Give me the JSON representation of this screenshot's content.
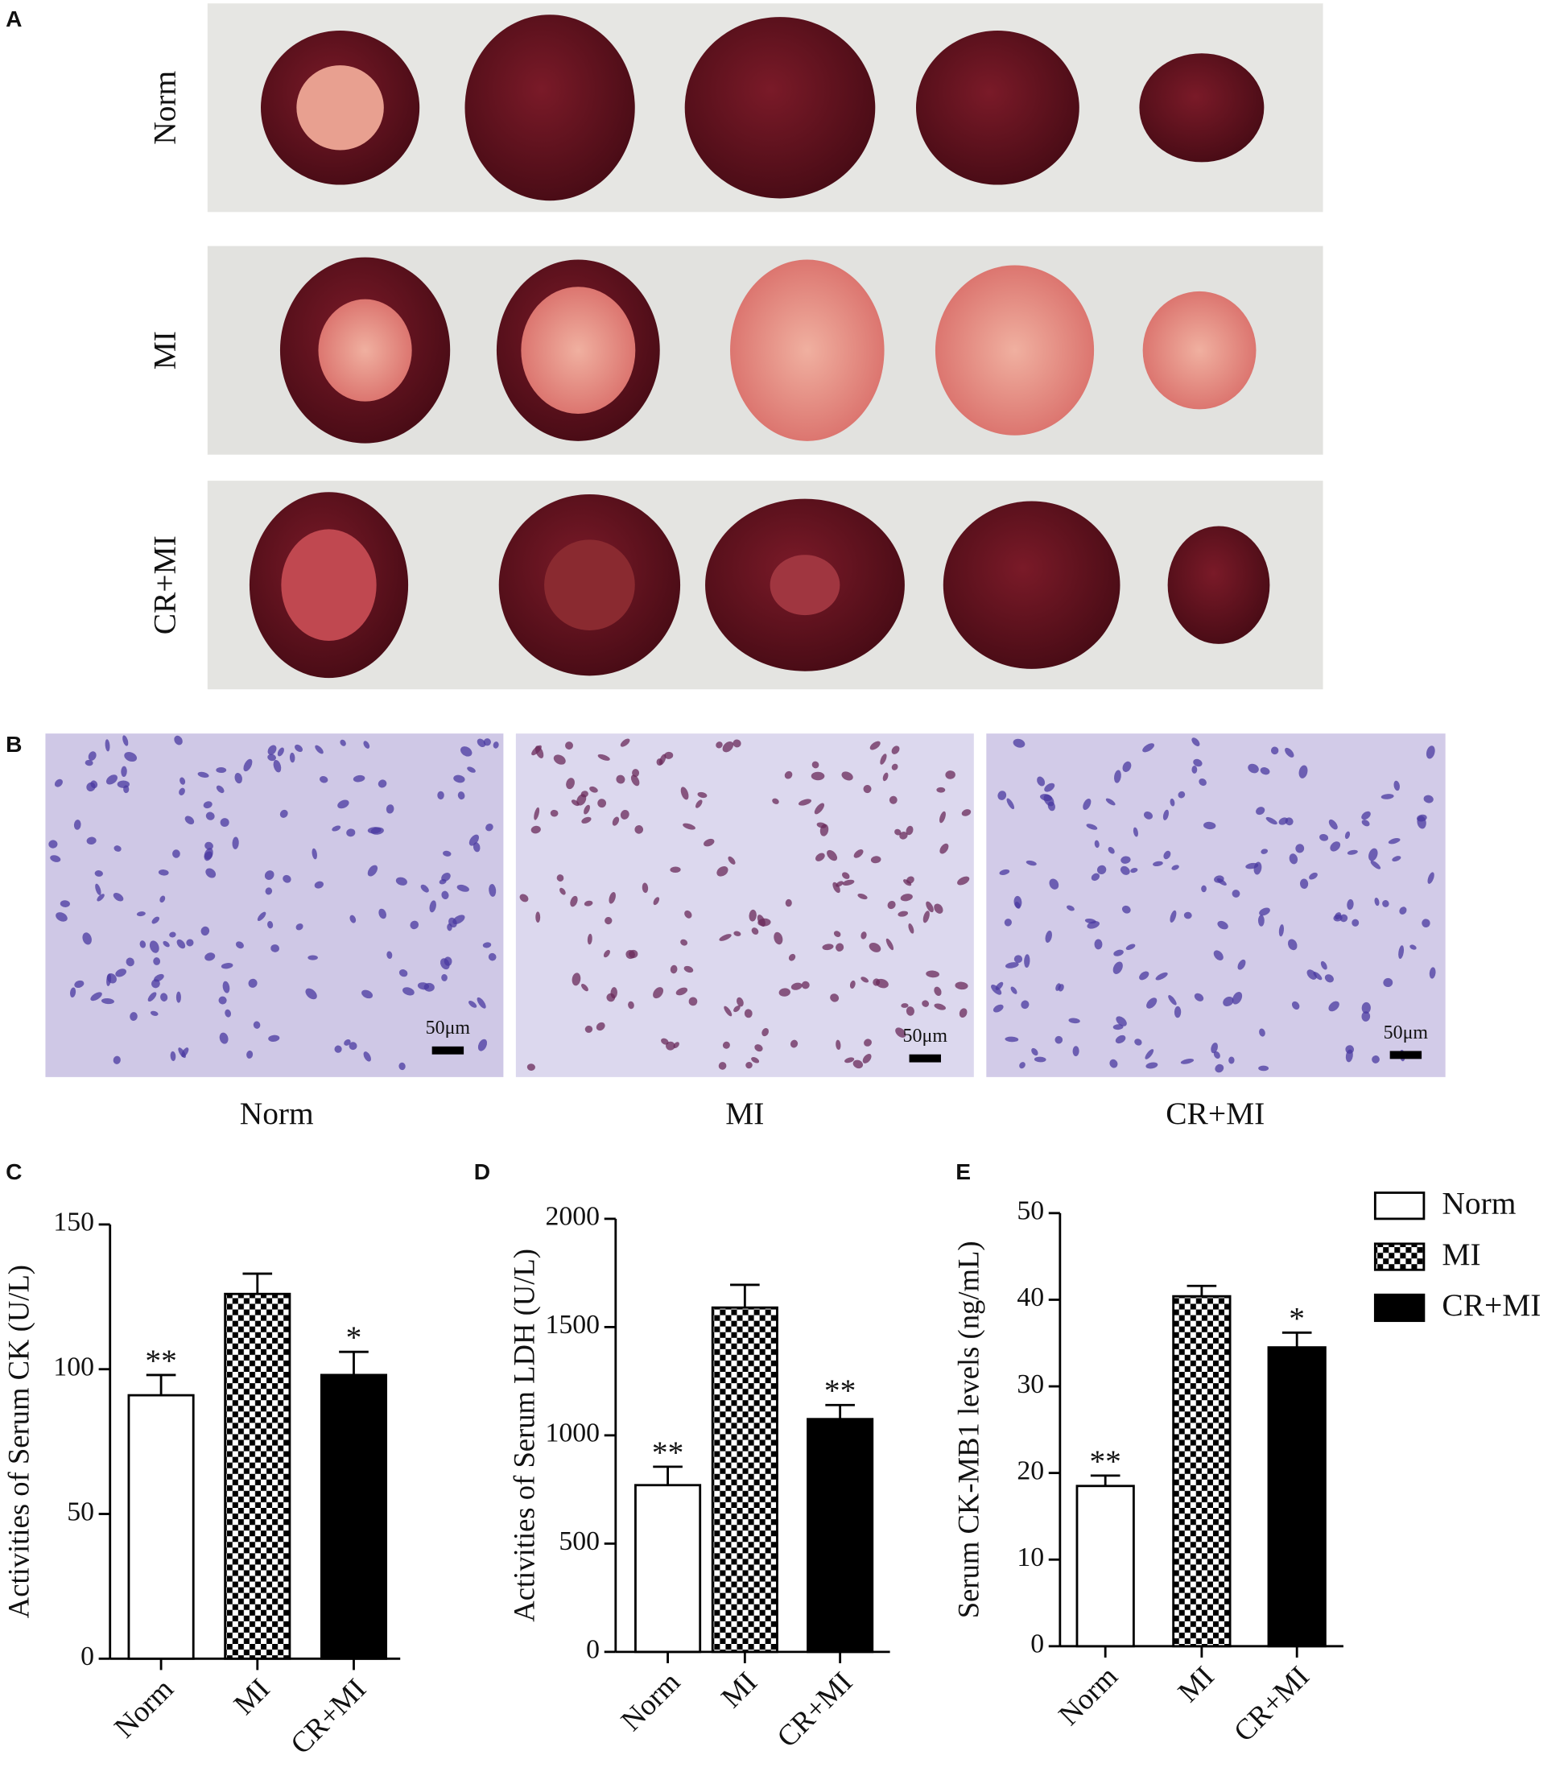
{
  "panel_labels": [
    "A",
    "B",
    "C",
    "D",
    "E"
  ],
  "panel_a": {
    "rows": [
      "Norm",
      "MI",
      "CR+MI"
    ]
  },
  "panel_b": {
    "captions": [
      "Norm",
      "MI",
      "CR+MI"
    ],
    "scale_bars": [
      "50μm",
      "50μm",
      "50μm"
    ]
  },
  "chart_data": [
    {
      "type": "bar",
      "y_label": "Activities of Serum CK (U/L)",
      "categories": [
        "Norm",
        "MI",
        "CR+MI"
      ],
      "values": [
        91,
        126,
        98
      ],
      "errors": [
        7,
        7,
        8
      ],
      "annotations": [
        "**",
        null,
        "*"
      ],
      "fills": [
        "white",
        "checker",
        "black"
      ],
      "ylim": [
        0,
        150
      ],
      "yticks": [
        0,
        50,
        100,
        150
      ]
    },
    {
      "type": "bar",
      "y_label": "Activities of Serum LDH (U/L)",
      "categories": [
        "Norm",
        "MI",
        "CR+MI"
      ],
      "values": [
        770,
        1590,
        1075
      ],
      "errors": [
        85,
        105,
        65
      ],
      "annotations": [
        "**",
        null,
        "**"
      ],
      "fills": [
        "white",
        "checker",
        "black"
      ],
      "ylim": [
        0,
        2000
      ],
      "yticks": [
        0,
        500,
        1000,
        1500,
        2000
      ]
    },
    {
      "type": "bar",
      "y_label": "Serum CK-MB1 levels (ng/mL)",
      "categories": [
        "Norm",
        "MI",
        "CR+MI"
      ],
      "values": [
        18.5,
        40.4,
        34.5
      ],
      "errors": [
        1.2,
        1.2,
        1.7
      ],
      "annotations": [
        "**",
        null,
        "*"
      ],
      "fills": [
        "white",
        "checker",
        "black"
      ],
      "ylim": [
        0,
        50
      ],
      "yticks": [
        0,
        10,
        20,
        30,
        40,
        50
      ],
      "legend": "right"
    }
  ]
}
